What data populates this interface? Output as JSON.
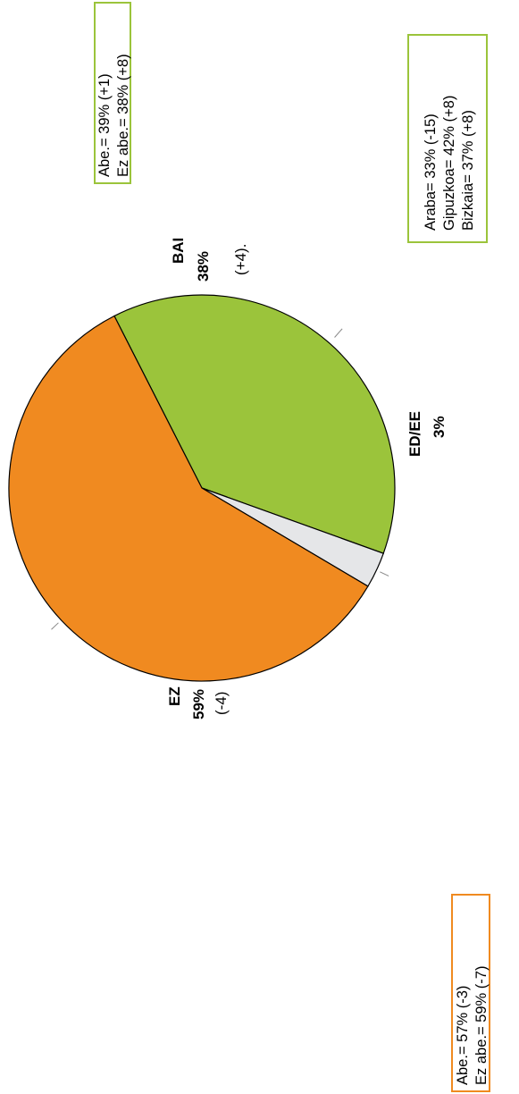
{
  "chart_data": {
    "type": "pie",
    "slices": [
      {
        "label": "BAI",
        "value": 38,
        "value_label": "38%",
        "change": "(+4).",
        "color": "#9bc43b"
      },
      {
        "label": "ED/EE",
        "value": 3,
        "value_label": "3%",
        "change": "",
        "color": "#e5e6e8"
      },
      {
        "label": "EZ",
        "value": 59,
        "value_label": "59%",
        "change": "(-4)",
        "color": "#f08a20"
      }
    ],
    "annotations": {
      "bai_box": {
        "border_color": "#9bc43b",
        "lines": [
          "Abe.= 39% (+1)",
          "Ez abe.= 38% (+8)"
        ]
      },
      "territory_box": {
        "border_color": "#9bc43b",
        "lines": [
          "Araba= 33% (-15)",
          "Gipuzkoa= 42% (+8)",
          "Bizkaia= 37% (+8)"
        ]
      },
      "ez_box": {
        "border_color": "#f08a20",
        "lines": [
          "Abe.= 57% (-3)",
          "Ez abe.= 59% (-7)"
        ]
      }
    },
    "orientation": "rotated 90 degrees counter-clockwise"
  }
}
